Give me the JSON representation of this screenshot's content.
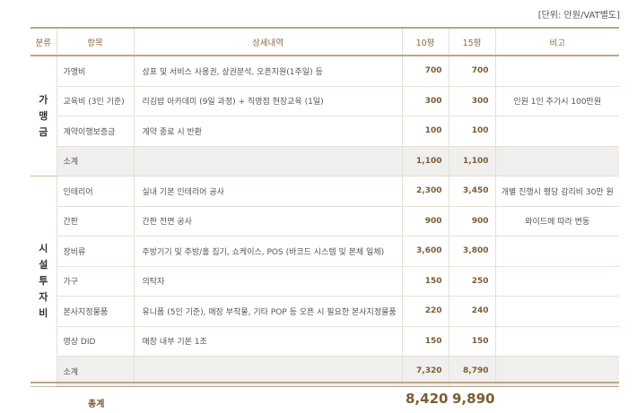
{
  "unit_note": "[단위: 만원/VAT별도]",
  "headers": [
    "분류",
    "항목",
    "상세내역",
    "10평",
    "15평",
    "비고"
  ],
  "groups": [
    {
      "category": "가맹금",
      "category_chars": [
        "가",
        "맹",
        "금"
      ],
      "rows": [
        {
          "item": "가맹비",
          "detail": "상표 및 서비스 사용권, 상권분석, 오픈지원(1주일) 등",
          "p10": "700",
          "p15": "700",
          "note": ""
        },
        {
          "item": "교육비 (3인 기준)",
          "detail": "리김밥 아카데미 (9일 과정) + 직영점 현장교육 (1일)",
          "p10": "300",
          "p15": "300",
          "note": "인원 1인 추가시 100만원"
        },
        {
          "item": "계약이행보증금",
          "detail": "계약 종료 시 반환",
          "p10": "100",
          "p15": "100",
          "note": ""
        },
        {
          "item": "소계",
          "detail": "",
          "p10": "1,100",
          "p15": "1,100",
          "note": ""
        }
      ]
    },
    {
      "category": "시설투자비",
      "category_chars": [
        "시",
        "설",
        "투",
        "자",
        "비"
      ],
      "rows": [
        {
          "item": "인테리어",
          "detail": "실내 기본 인테리어 공사",
          "p10": "2,300",
          "p15": "3,450",
          "note": "개별 진행시 평당 감리비 30만 원"
        },
        {
          "item": "간판",
          "detail": "간판 전면 공사",
          "p10": "900",
          "p15": "900",
          "note": "와이드에 따라 변동"
        },
        {
          "item": "장비류",
          "detail": "주방기기 및 주방/홀 집기, 쇼케이스, POS (바코드 시스템 및 본체 일체)",
          "p10": "3,600",
          "p15": "3,800",
          "note": ""
        },
        {
          "item": "가구",
          "detail": "의탁자",
          "p10": "150",
          "p15": "250",
          "note": ""
        },
        {
          "item": "본사지정물품",
          "detail": "유니폼 (5인 기준), 매장 부착물, 기타 POP 등 오픈 시 필요한 본사지정물품",
          "p10": "220",
          "p15": "240",
          "note": ""
        },
        {
          "item": "영상 DID",
          "detail": "매장 내부 기본 1조",
          "p10": "150",
          "p15": "150",
          "note": ""
        },
        {
          "item": "소계",
          "detail": "",
          "p10": "7,320",
          "p15": "8,790",
          "note": ""
        }
      ]
    }
  ],
  "total": {
    "label": "총계",
    "p10": "8,420",
    "p15": "9,890"
  }
}
